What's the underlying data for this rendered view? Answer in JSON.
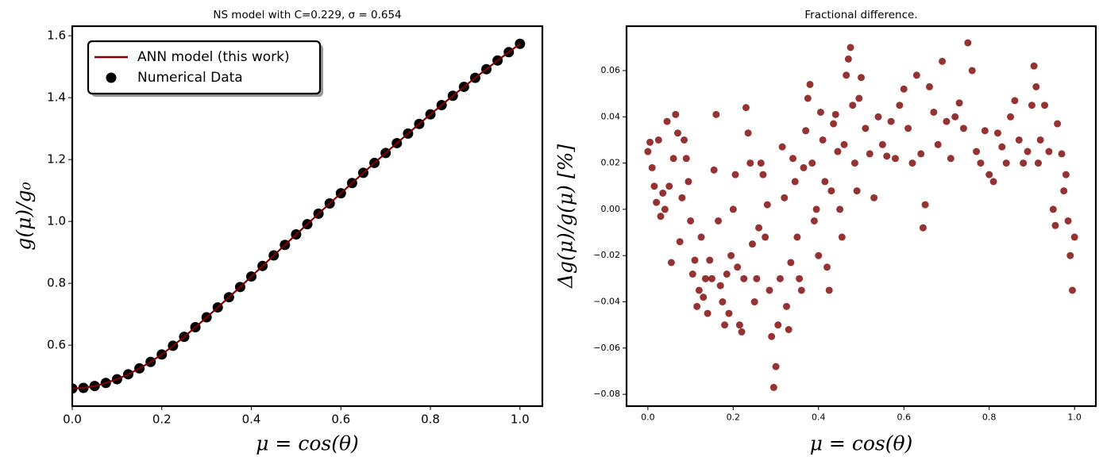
{
  "chart_data": [
    {
      "type": "line",
      "title": "NS model with C=0.229, σ = 0.654",
      "xlabel": "μ = cos(θ)",
      "ylabel": "g(μ)/g₀",
      "xlim": [
        0,
        1.05
      ],
      "ylim": [
        0.403,
        1.631
      ],
      "xticks": [
        {
          "value": 0,
          "label": "0.0"
        },
        0.2,
        0.4,
        0.6,
        0.8,
        {
          "value": 1,
          "label": "1.0"
        }
      ],
      "yticks": [
        0.6,
        0.8,
        {
          "value": 1,
          "label": "1.0"
        },
        1.2,
        1.4,
        1.6
      ],
      "legend": "upper left",
      "x": [
        0,
        0.025,
        0.05,
        0.075,
        0.1,
        0.125,
        0.15,
        0.175,
        0.2,
        0.225,
        0.25,
        0.275,
        0.3,
        0.325,
        0.35,
        0.375,
        0.4,
        0.425,
        0.45,
        0.475,
        0.5,
        0.525,
        0.55,
        0.575,
        0.6,
        0.625,
        0.65,
        0.675,
        0.7,
        0.725,
        0.75,
        0.775,
        0.8,
        0.825,
        0.85,
        0.875,
        0.9,
        0.925,
        0.95,
        0.975,
        1.0
      ],
      "series": [
        {
          "name": "ANN model (this work)",
          "type": "line",
          "color": "#7f0000",
          "values": [
            0.46,
            0.462,
            0.468,
            0.478,
            0.49,
            0.506,
            0.525,
            0.546,
            0.57,
            0.598,
            0.627,
            0.658,
            0.69,
            0.722,
            0.755,
            0.788,
            0.822,
            0.856,
            0.89,
            0.924,
            0.958,
            0.991,
            1.025,
            1.058,
            1.091,
            1.124,
            1.157,
            1.189,
            1.221,
            1.253,
            1.284,
            1.315,
            1.346,
            1.376,
            1.406,
            1.435,
            1.464,
            1.492,
            1.52,
            1.547,
            1.574
          ]
        },
        {
          "name": "Numerical Data",
          "type": "scatter",
          "color": "#000000",
          "values": [
            0.46,
            0.462,
            0.468,
            0.478,
            0.49,
            0.506,
            0.525,
            0.546,
            0.57,
            0.598,
            0.627,
            0.658,
            0.69,
            0.722,
            0.755,
            0.788,
            0.822,
            0.856,
            0.89,
            0.924,
            0.958,
            0.991,
            1.025,
            1.058,
            1.091,
            1.124,
            1.157,
            1.189,
            1.221,
            1.253,
            1.284,
            1.315,
            1.346,
            1.376,
            1.406,
            1.435,
            1.464,
            1.492,
            1.52,
            1.547,
            1.574
          ]
        }
      ]
    },
    {
      "type": "scatter",
      "title": "Fractional difference.",
      "xlabel": "μ = cos(θ)",
      "ylabel": "Δg(μ)/g(μ)  [%]",
      "xlim": [
        -0.05,
        1.05
      ],
      "ylim": [
        -0.0851,
        0.0792
      ],
      "xticks": [
        {
          "value": 0,
          "label": "0.0"
        },
        0.2,
        0.4,
        0.6,
        0.8,
        {
          "value": 1,
          "label": "1.0"
        }
      ],
      "yticks": [
        {
          "value": -0.08,
          "label": "−0.08"
        },
        {
          "value": -0.06,
          "label": "−0.06"
        },
        {
          "value": -0.04,
          "label": "−0.04"
        },
        {
          "value": -0.02,
          "label": "−0.02"
        },
        {
          "value": 0,
          "label": "0.00"
        },
        {
          "value": 0.02,
          "label": "0.02"
        },
        {
          "value": 0.04,
          "label": "0.04"
        },
        {
          "value": 0.06,
          "label": "0.06"
        }
      ],
      "series": [
        {
          "color": "#7b0000",
          "x": [
            0,
            0.005,
            0.01,
            0.015,
            0.02,
            0.025,
            0.03,
            0.035,
            0.04,
            0.045,
            0.05,
            0.055,
            0.06,
            0.065,
            0.07,
            0.075,
            0.08,
            0.085,
            0.09,
            0.095,
            0.1,
            0.105,
            0.11,
            0.115,
            0.12,
            0.125,
            0.13,
            0.135,
            0.14,
            0.145,
            0.15,
            0.155,
            0.16,
            0.165,
            0.17,
            0.175,
            0.18,
            0.185,
            0.19,
            0.195,
            0.2,
            0.205,
            0.21,
            0.215,
            0.22,
            0.225,
            0.23,
            0.235,
            0.24,
            0.245,
            0.25,
            0.255,
            0.26,
            0.265,
            0.27,
            0.275,
            0.28,
            0.285,
            0.29,
            0.295,
            0.3,
            0.305,
            0.31,
            0.315,
            0.32,
            0.325,
            0.33,
            0.335,
            0.34,
            0.345,
            0.35,
            0.355,
            0.36,
            0.365,
            0.37,
            0.375,
            0.38,
            0.385,
            0.39,
            0.395,
            0.4,
            0.405,
            0.41,
            0.415,
            0.42,
            0.425,
            0.43,
            0.435,
            0.44,
            0.445,
            0.45,
            0.455,
            0.46,
            0.465,
            0.47,
            0.475,
            0.48,
            0.485,
            0.49,
            0.495,
            0.5,
            0.51,
            0.52,
            0.53,
            0.54,
            0.55,
            0.56,
            0.57,
            0.58,
            0.59,
            0.6,
            0.61,
            0.62,
            0.63,
            0.64,
            0.645,
            0.65,
            0.66,
            0.67,
            0.68,
            0.69,
            0.7,
            0.71,
            0.72,
            0.73,
            0.74,
            0.75,
            0.76,
            0.77,
            0.78,
            0.79,
            0.8,
            0.81,
            0.82,
            0.83,
            0.84,
            0.85,
            0.86,
            0.87,
            0.88,
            0.89,
            0.9,
            0.905,
            0.91,
            0.915,
            0.92,
            0.93,
            0.94,
            0.95,
            0.955,
            0.96,
            0.97,
            0.975,
            0.98,
            0.985,
            0.99,
            0.995,
            1.0
          ],
          "values": [
            0.025,
            0.029,
            0.018,
            0.01,
            0.003,
            0.03,
            -0.003,
            0.007,
            0.0,
            0.038,
            0.01,
            -0.023,
            0.022,
            0.041,
            0.033,
            -0.014,
            0.005,
            0.03,
            0.022,
            0.012,
            -0.005,
            -0.028,
            -0.022,
            -0.042,
            -0.035,
            -0.012,
            -0.038,
            -0.03,
            -0.045,
            -0.022,
            -0.03,
            0.017,
            0.041,
            -0.005,
            -0.033,
            -0.04,
            -0.05,
            -0.028,
            -0.045,
            -0.02,
            0.0,
            0.015,
            -0.025,
            -0.05,
            -0.053,
            -0.03,
            0.044,
            0.033,
            0.02,
            -0.015,
            -0.04,
            -0.03,
            -0.008,
            0.02,
            0.015,
            -0.012,
            0.002,
            -0.035,
            -0.055,
            -0.077,
            -0.068,
            -0.05,
            -0.03,
            0.027,
            0.005,
            -0.042,
            -0.052,
            -0.023,
            0.022,
            0.012,
            -0.012,
            -0.03,
            -0.035,
            0.018,
            0.034,
            0.048,
            0.054,
            0.02,
            -0.005,
            0.0,
            -0.02,
            0.042,
            0.03,
            0.012,
            -0.025,
            -0.035,
            0.008,
            0.037,
            0.041,
            0.025,
            0.0,
            -0.012,
            0.028,
            0.058,
            0.065,
            0.07,
            0.045,
            0.02,
            0.008,
            0.048,
            0.057,
            0.035,
            0.024,
            0.005,
            0.04,
            0.028,
            0.023,
            0.038,
            0.022,
            0.045,
            0.052,
            0.035,
            0.02,
            0.058,
            0.024,
            -0.008,
            0.002,
            0.053,
            0.042,
            0.028,
            0.064,
            0.038,
            0.022,
            0.04,
            0.046,
            0.035,
            0.072,
            0.06,
            0.025,
            0.02,
            0.034,
            0.015,
            0.012,
            0.033,
            0.027,
            0.02,
            0.04,
            0.047,
            0.03,
            0.02,
            0.025,
            0.045,
            0.062,
            0.053,
            0.02,
            0.03,
            0.045,
            0.025,
            0.0,
            -0.007,
            0.037,
            0.024,
            0.008,
            0.015,
            -0.005,
            -0.02,
            -0.035,
            -0.012
          ]
        }
      ]
    }
  ]
}
